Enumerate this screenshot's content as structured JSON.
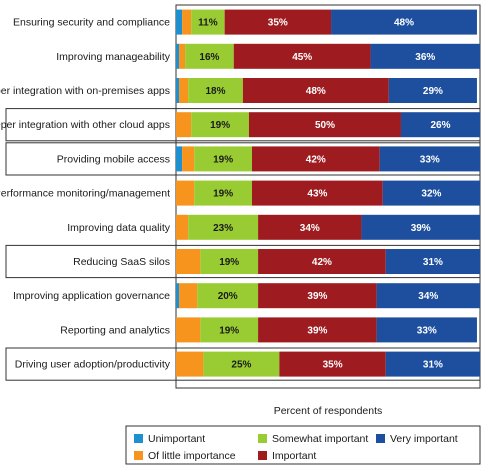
{
  "chart_data": {
    "type": "bar",
    "orientation": "horizontal",
    "stacked": true,
    "xlabel": "Percent of respondents",
    "xlim": [
      0,
      100
    ],
    "categories": [
      "Ensuring security and compliance",
      "Improving manageability",
      "Deeper integration with on-premises apps",
      "Deeper integration with other cloud apps",
      "Providing mobile access",
      "Performance monitoring/management",
      "Improving data quality",
      "Reducing SaaS silos",
      "Improving application governance",
      "Reporting and analytics",
      "Driving user adoption/productivity"
    ],
    "highlighted_categories": [
      "Deeper integration with other cloud apps",
      "Providing mobile access",
      "Reducing SaaS silos",
      "Driving user adoption/productivity"
    ],
    "series": [
      {
        "name": "Unimportant",
        "color": "#1e8fcf",
        "values": [
          2,
          1,
          1,
          0,
          2,
          0,
          0,
          0,
          1,
          0,
          0
        ]
      },
      {
        "name": "Of little importance",
        "color": "#f7941d",
        "values": [
          3,
          2,
          3,
          5,
          4,
          6,
          4,
          8,
          6,
          8,
          9
        ]
      },
      {
        "name": "Somewhat important",
        "color": "#99cc33",
        "values": [
          11,
          16,
          18,
          19,
          19,
          19,
          23,
          19,
          20,
          19,
          25
        ]
      },
      {
        "name": "Important",
        "color": "#9e1b20",
        "values": [
          35,
          45,
          48,
          50,
          42,
          43,
          34,
          42,
          39,
          39,
          35
        ]
      },
      {
        "name": "Very important",
        "color": "#1d4f9e",
        "values": [
          48,
          36,
          29,
          26,
          33,
          32,
          39,
          31,
          34,
          33,
          31
        ]
      }
    ],
    "legend_position": "bottom",
    "grid": false
  }
}
